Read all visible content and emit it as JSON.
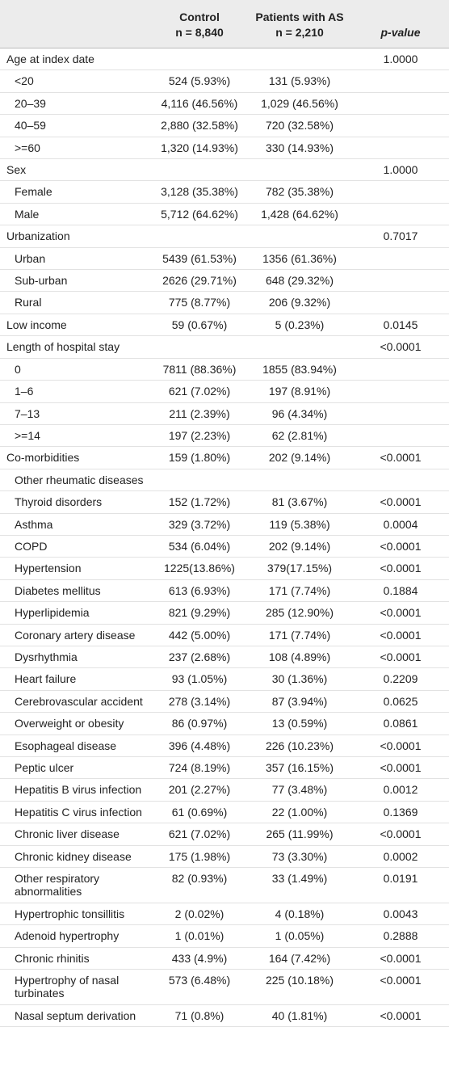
{
  "header": {
    "label": null,
    "control": "Control",
    "control_n": "n = 8,840",
    "patients": "Patients with AS",
    "patients_n": "n = 2,210",
    "p_value": "p-value"
  },
  "groups": [
    {
      "label": "Age at index date",
      "control": null,
      "patients": null,
      "p_value": "1.0000",
      "items": [
        {
          "label": "<20",
          "control": "524 (5.93%)",
          "patients": "131 (5.93%)",
          "p_value": null
        },
        {
          "label": "20–39",
          "control": "4,116 (46.56%)",
          "patients": "1,029 (46.56%)",
          "p_value": null
        },
        {
          "label": "40–59",
          "control": "2,880 (32.58%)",
          "patients": "720 (32.58%)",
          "p_value": null
        },
        {
          "label": ">=60",
          "control": "1,320 (14.93%)",
          "patients": "330 (14.93%)",
          "p_value": null
        }
      ]
    },
    {
      "label": "Sex",
      "control": null,
      "patients": null,
      "p_value": "1.0000",
      "items": [
        {
          "label": "Female",
          "control": "3,128 (35.38%)",
          "patients": "782 (35.38%)",
          "p_value": null
        },
        {
          "label": "Male",
          "control": "5,712 (64.62%)",
          "patients": "1,428 (64.62%)",
          "p_value": null
        }
      ]
    },
    {
      "label": "Urbanization",
      "control": null,
      "patients": null,
      "p_value": "0.7017",
      "items": [
        {
          "label": "Urban",
          "control": "5439 (61.53%)",
          "patients": "1356 (61.36%)",
          "p_value": null
        },
        {
          "label": "Sub-urban",
          "control": "2626 (29.71%)",
          "patients": "648 (29.32%)",
          "p_value": null
        },
        {
          "label": "Rural",
          "control": "775 (8.77%)",
          "patients": "206 (9.32%)",
          "p_value": null
        }
      ]
    },
    {
      "label": "Low income",
      "control": "59 (0.67%)",
      "patients": "5 (0.23%)",
      "p_value": "0.0145",
      "items": []
    },
    {
      "label": "Length of hospital stay",
      "control": null,
      "patients": null,
      "p_value": "<0.0001",
      "items": [
        {
          "label": "0",
          "control": "7811 (88.36%)",
          "patients": "1855 (83.94%)",
          "p_value": null
        },
        {
          "label": "1–6",
          "control": "621 (7.02%)",
          "patients": "197 (8.91%)",
          "p_value": null
        },
        {
          "label": "7–13",
          "control": "211 (2.39%)",
          "patients": "96 (4.34%)",
          "p_value": null
        },
        {
          "label": ">=14",
          "control": "197 (2.23%)",
          "patients": "62 (2.81%)",
          "p_value": null
        }
      ]
    },
    {
      "label": "Co-morbidities",
      "control": "159 (1.80%)",
      "patients": "202 (9.14%)",
      "p_value": "<0.0001",
      "items": [
        {
          "label": "Other rheumatic diseases",
          "control": null,
          "patients": null,
          "p_value": null
        },
        {
          "label": "Thyroid disorders",
          "control": "152 (1.72%)",
          "patients": "81 (3.67%)",
          "p_value": "<0.0001"
        },
        {
          "label": "Asthma",
          "control": "329 (3.72%)",
          "patients": "119 (5.38%)",
          "p_value": "0.0004"
        },
        {
          "label": "COPD",
          "control": "534 (6.04%)",
          "patients": "202 (9.14%)",
          "p_value": "<0.0001"
        },
        {
          "label": "Hypertension",
          "control": "1225(13.86%)",
          "patients": "379(17.15%)",
          "p_value": "<0.0001"
        },
        {
          "label": "Diabetes mellitus",
          "control": "613 (6.93%)",
          "patients": "171 (7.74%)",
          "p_value": "0.1884"
        },
        {
          "label": "Hyperlipidemia",
          "control": "821 (9.29%)",
          "patients": "285 (12.90%)",
          "p_value": "<0.0001"
        },
        {
          "label": "Coronary artery disease",
          "control": "442 (5.00%)",
          "patients": "171 (7.74%)",
          "p_value": "<0.0001"
        },
        {
          "label": "Dysrhythmia",
          "control": "237 (2.68%)",
          "patients": "108 (4.89%)",
          "p_value": "<0.0001"
        },
        {
          "label": "Heart failure",
          "control": "93 (1.05%)",
          "patients": "30 (1.36%)",
          "p_value": "0.2209"
        },
        {
          "label": "Cerebrovascular accident",
          "control": "278 (3.14%)",
          "patients": "87 (3.94%)",
          "p_value": "0.0625"
        },
        {
          "label": "Overweight or obesity",
          "control": "86 (0.97%)",
          "patients": "13 (0.59%)",
          "p_value": "0.0861"
        },
        {
          "label": "Esophageal disease",
          "control": "396 (4.48%)",
          "patients": "226 (10.23%)",
          "p_value": "<0.0001"
        },
        {
          "label": "Peptic ulcer",
          "control": "724 (8.19%)",
          "patients": "357 (16.15%)",
          "p_value": "<0.0001"
        },
        {
          "label": "Hepatitis B virus infection",
          "control": "201 (2.27%)",
          "patients": "77 (3.48%)",
          "p_value": "0.0012"
        },
        {
          "label": "Hepatitis C virus infection",
          "control": "61 (0.69%)",
          "patients": "22 (1.00%)",
          "p_value": "0.1369"
        },
        {
          "label": "Chronic liver disease",
          "control": "621 (7.02%)",
          "patients": "265 (11.99%)",
          "p_value": "<0.0001"
        },
        {
          "label": "Chronic kidney disease",
          "control": "175 (1.98%)",
          "patients": "73 (3.30%)",
          "p_value": "0.0002"
        },
        {
          "label": "Other respiratory abnormalities",
          "control": "82 (0.93%)",
          "patients": "33 (1.49%)",
          "p_value": "0.0191"
        },
        {
          "label": "Hypertrophic tonsillitis",
          "control": "2 (0.02%)",
          "patients": "4 (0.18%)",
          "p_value": "0.0043"
        },
        {
          "label": "Adenoid hypertrophy",
          "control": "1 (0.01%)",
          "patients": "1 (0.05%)",
          "p_value": "0.2888"
        },
        {
          "label": "Chronic rhinitis",
          "control": "433 (4.9%)",
          "patients": "164 (7.42%)",
          "p_value": "<0.0001"
        },
        {
          "label": "Hypertrophy of nasal turbinates",
          "control": "573 (6.48%)",
          "patients": "225 (10.18%)",
          "p_value": "<0.0001"
        },
        {
          "label": "Nasal septum derivation",
          "control": "71 (0.8%)",
          "patients": "40 (1.81%)",
          "p_value": "<0.0001"
        }
      ]
    }
  ]
}
